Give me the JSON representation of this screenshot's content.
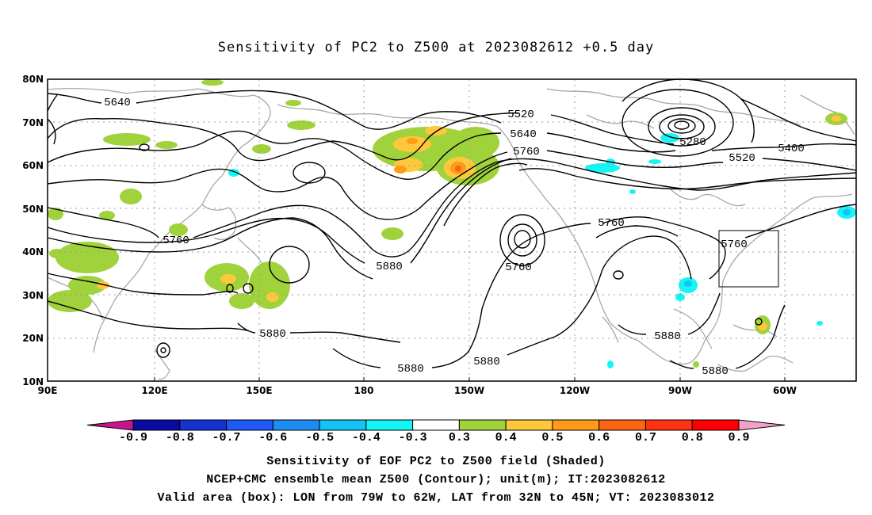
{
  "title": "Sensitivity of PC2 to Z500 at 2023082612 +0.5 day",
  "lat_labels": [
    "80N",
    "70N",
    "60N",
    "50N",
    "40N",
    "30N",
    "20N",
    "10N"
  ],
  "lon_labels": [
    "90E",
    "120E",
    "150E",
    "180",
    "150W",
    "120W",
    "90W",
    "60W"
  ],
  "contour_labels": [
    {
      "text": "5640"
    },
    {
      "text": "5520"
    },
    {
      "text": "5640"
    },
    {
      "text": "5760"
    },
    {
      "text": "5280"
    },
    {
      "text": "5400"
    },
    {
      "text": "5520"
    },
    {
      "text": "5760"
    },
    {
      "text": "5880"
    },
    {
      "text": "5760"
    },
    {
      "text": "5760"
    },
    {
      "text": "5760"
    },
    {
      "text": "5880"
    },
    {
      "text": "5880"
    },
    {
      "text": "5880"
    },
    {
      "text": "5880"
    },
    {
      "text": "5880"
    }
  ],
  "colorbar": {
    "labels": [
      "-0.9",
      "-0.8",
      "-0.7",
      "-0.6",
      "-0.5",
      "-0.4",
      "-0.3",
      "0.3",
      "0.4",
      "0.5",
      "0.6",
      "0.7",
      "0.8",
      "0.9"
    ],
    "colors": [
      "#c8148c",
      "#0a0aa0",
      "#1432d2",
      "#1e5af5",
      "#1e8cf5",
      "#14c3f5",
      "#14f5f5",
      "#ffffff",
      "#a0d23c",
      "#ffc83c",
      "#ff9b14",
      "#ff6414",
      "#ff3214",
      "#ff0000",
      "#f5a0c8"
    ]
  },
  "captions": [
    "Sensitivity of EOF PC2 to Z500 field (Shaded)",
    "NCEP+CMC ensemble mean Z500 (Contour); unit(m); IT:2023082612",
    "Valid area (box): LON from 79W to 62W, LAT from 32N to 45N; VT: 2023083012"
  ]
}
